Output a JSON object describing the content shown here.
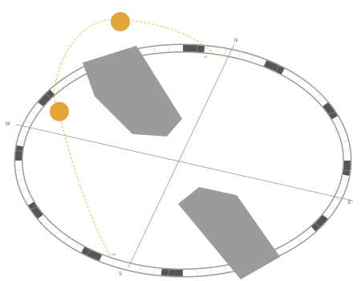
{
  "compass": {
    "north": "N",
    "south": "S",
    "east": "E",
    "west": "W"
  },
  "markers": {
    "top": "12",
    "bottom": "12"
  },
  "colors": {
    "ring_dark": "#555555",
    "ring_light": "#ffffff",
    "ring_outline": "#9a9a9a",
    "building": "#9b9b9b",
    "sun": "#e3a43c",
    "sun_path": "#e8b84a",
    "axis_line": "#9a9a9a",
    "marker": "#d04040"
  },
  "icons": {
    "sun": "sun-icon"
  }
}
